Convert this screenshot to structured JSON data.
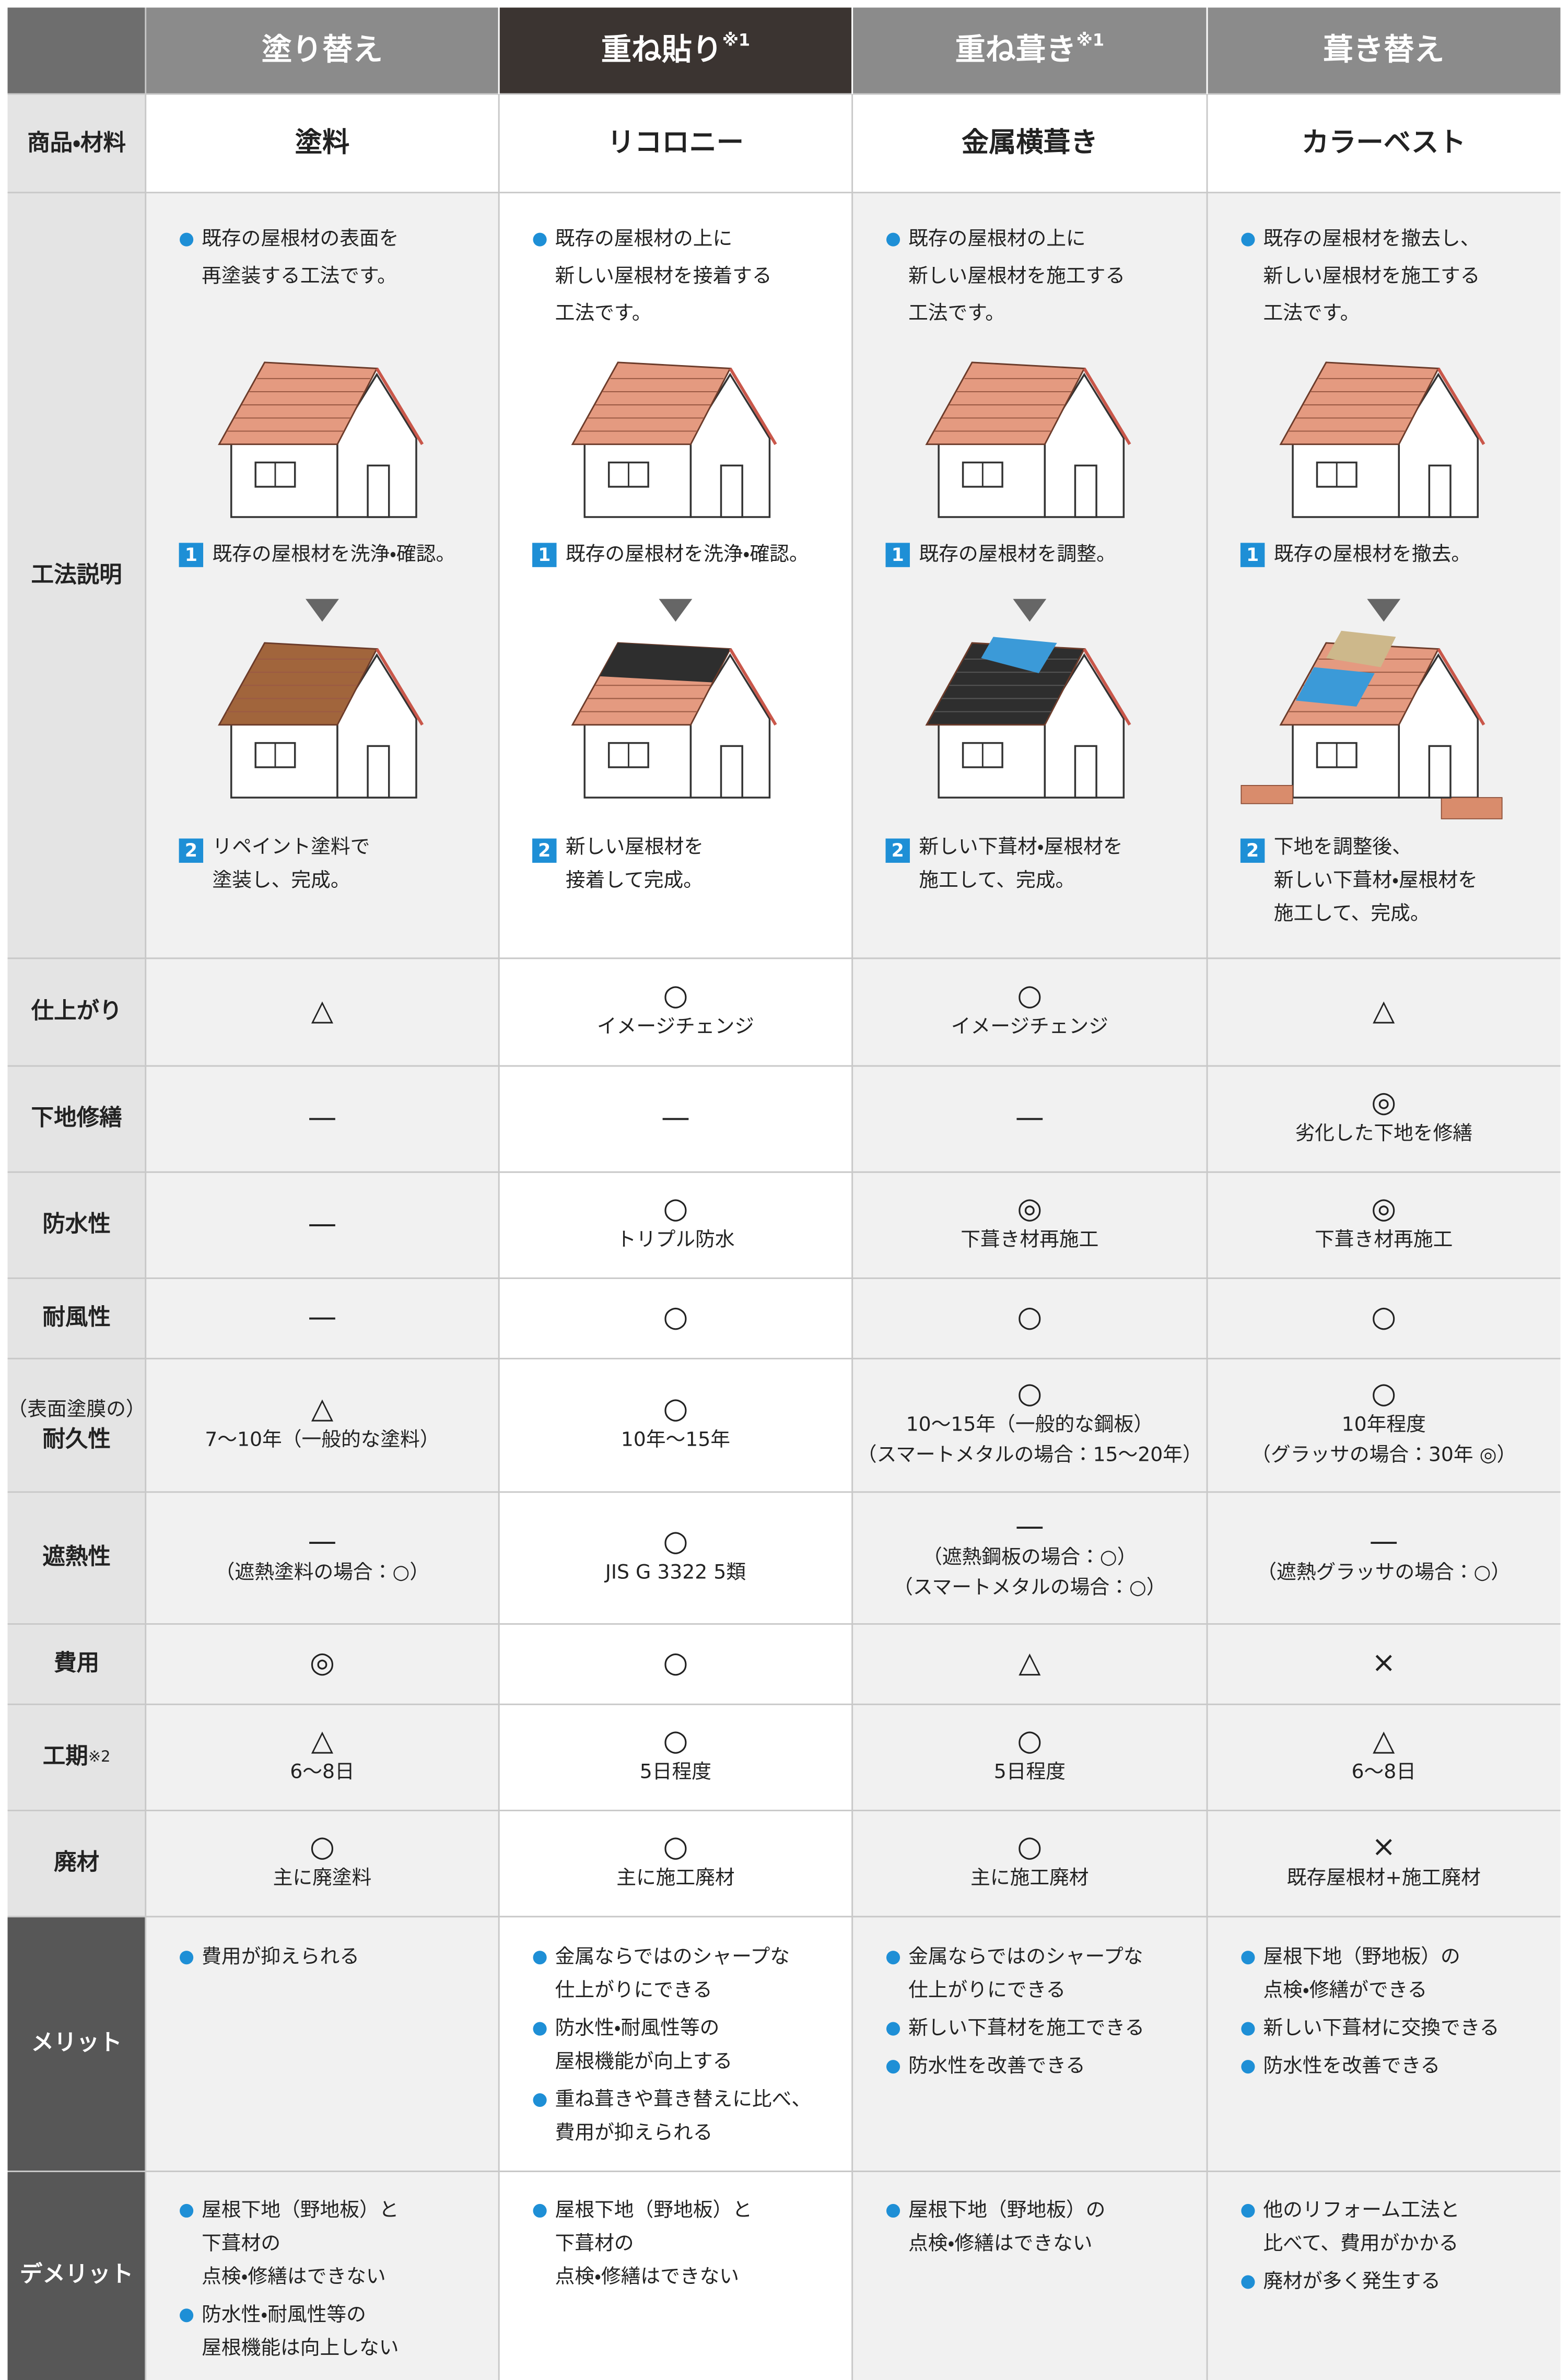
{
  "table": {
    "columns": [
      {
        "title": "塗り替え"
      },
      {
        "title": "重ね貼り",
        "note": "※1"
      },
      {
        "title": "重ね葺き",
        "note": "※1"
      },
      {
        "title": "葺き替え"
      }
    ],
    "product": {
      "label": "商品・材料",
      "values": [
        "塗料",
        "リコロニー",
        "金属横葺き",
        "カラーベスト"
      ]
    },
    "method": {
      "label": "工法説明",
      "step_numbers": [
        "1",
        "2"
      ],
      "cells": [
        {
          "intro": [
            "既存の屋根材の表面を",
            "再塗装する工法です。"
          ],
          "step1": [
            "既存の屋根材を洗浄・確認。"
          ],
          "step2": [
            "リペイント塗料で",
            "塗装し、完成。"
          ]
        },
        {
          "intro": [
            "既存の屋根材の上に",
            "新しい屋根材を接着する",
            "工法です。"
          ],
          "step1": [
            "既存の屋根材を洗浄・確認。"
          ],
          "step2": [
            "新しい屋根材を",
            "接着して完成。"
          ]
        },
        {
          "intro": [
            "既存の屋根材の上に",
            "新しい屋根材を施工する",
            "工法です。"
          ],
          "step1": [
            "既存の屋根材を調整。"
          ],
          "step2": [
            "新しい下葺材・屋根材を",
            "施工して、完成。"
          ]
        },
        {
          "intro": [
            "既存の屋根材を撤去し、",
            "新しい屋根材を施工する",
            "工法です。"
          ],
          "step1": [
            "既存の屋根材を撤去。"
          ],
          "step2": [
            "下地を調整後、",
            "新しい下葺材・屋根材を",
            "施工して、完成。"
          ]
        }
      ]
    },
    "rows": [
      {
        "label": [
          "仕上がり"
        ],
        "cells": [
          {
            "mark": "△"
          },
          {
            "mark": "○",
            "note": [
              "イメージチェンジ"
            ]
          },
          {
            "mark": "○",
            "note": [
              "イメージチェンジ"
            ]
          },
          {
            "mark": "△"
          }
        ]
      },
      {
        "label": [
          "下地修繕"
        ],
        "cells": [
          {
            "mark": "—"
          },
          {
            "mark": "—"
          },
          {
            "mark": "—"
          },
          {
            "mark": "◎",
            "note": [
              "劣化した下地を修繕"
            ]
          }
        ]
      },
      {
        "label": [
          "防水性"
        ],
        "cells": [
          {
            "mark": "—"
          },
          {
            "mark": "○",
            "note": [
              "トリプル防水"
            ]
          },
          {
            "mark": "◎",
            "note": [
              "下葺き材再施工"
            ]
          },
          {
            "mark": "◎",
            "note": [
              "下葺き材再施工"
            ]
          }
        ]
      },
      {
        "label": [
          "耐風性"
        ],
        "cells": [
          {
            "mark": "—"
          },
          {
            "mark": "○"
          },
          {
            "mark": "○"
          },
          {
            "mark": "○"
          }
        ]
      },
      {
        "label": [
          "（表面塗膜の）",
          "耐久性"
        ],
        "cells": [
          {
            "mark": "△",
            "note": [
              "7〜10年（一般的な塗料）"
            ]
          },
          {
            "mark": "○",
            "note": [
              "10年〜15年"
            ]
          },
          {
            "mark": "○",
            "note": [
              "10〜15年（一般的な鋼板）",
              "（スマートメタルの場合：15〜20年）"
            ]
          },
          {
            "mark": "○",
            "note": [
              "10年程度",
              "（グラッサの場合：30年 ◎）"
            ]
          }
        ]
      },
      {
        "label": [
          "遮熱性"
        ],
        "cells": [
          {
            "mark": "—",
            "note": [
              "（遮熱塗料の場合：○）"
            ]
          },
          {
            "mark": "○",
            "note": [
              "JIS G 3322 5類"
            ]
          },
          {
            "mark": "—",
            "note": [
              "（遮熱鋼板の場合：○）",
              "（スマートメタルの場合：○）"
            ]
          },
          {
            "mark": "—",
            "note": [
              "（遮熱グラッサの場合：○）"
            ]
          }
        ]
      },
      {
        "label": [
          "費用"
        ],
        "cells": [
          {
            "mark": "◎"
          },
          {
            "mark": "○"
          },
          {
            "mark": "△"
          },
          {
            "mark": "×"
          }
        ]
      },
      {
        "label": [
          "工期"
        ],
        "note": "※2",
        "cells": [
          {
            "mark": "△",
            "note": [
              "6〜8日"
            ]
          },
          {
            "mark": "○",
            "note": [
              "5日程度"
            ]
          },
          {
            "mark": "○",
            "note": [
              "5日程度"
            ]
          },
          {
            "mark": "△",
            "note": [
              "6〜8日"
            ]
          }
        ]
      },
      {
        "label": [
          "廃材"
        ],
        "cells": [
          {
            "mark": "○",
            "note": [
              "主に廃塗料"
            ]
          },
          {
            "mark": "○",
            "note": [
              "主に施工廃材"
            ]
          },
          {
            "mark": "○",
            "note": [
              "主に施工廃材"
            ]
          },
          {
            "mark": "×",
            "note": [
              "既存屋根材+施工廃材"
            ]
          }
        ]
      }
    ],
    "merits": {
      "label": "メリット",
      "cells": [
        [
          [
            "費用が抑えられる"
          ]
        ],
        [
          [
            "金属ならではのシャープな",
            "仕上がりにできる"
          ],
          [
            "防水性・耐風性等の",
            "屋根機能が向上する"
          ],
          [
            "重ね葺きや葺き替えに比べ、",
            "費用が抑えられる"
          ]
        ],
        [
          [
            "金属ならではのシャープな",
            "仕上がりにできる"
          ],
          [
            "新しい下葺材を施工できる"
          ],
          [
            "防水性を改善できる"
          ]
        ],
        [
          [
            "屋根下地（野地板）の",
            "点検・修繕ができる"
          ],
          [
            "新しい下葺材に交換できる"
          ],
          [
            "防水性を改善できる"
          ]
        ]
      ]
    },
    "demerits": {
      "label": "デメリット",
      "cells": [
        [
          [
            "屋根下地（野地板）と",
            "下葺材の",
            "点検・修繕はできない"
          ],
          [
            "防水性・耐風性等の",
            "屋根機能は向上しない"
          ]
        ],
        [
          [
            "屋根下地（野地板）と",
            "下葺材の",
            "点検・修繕はできない"
          ]
        ],
        [
          [
            "屋根下地（野地板）の",
            "点検・修繕はできない"
          ]
        ],
        [
          [
            "他のリフォーム工法と",
            "比べて、費用がかかる"
          ],
          [
            "廃材が多く発生する"
          ]
        ]
      ]
    }
  }
}
